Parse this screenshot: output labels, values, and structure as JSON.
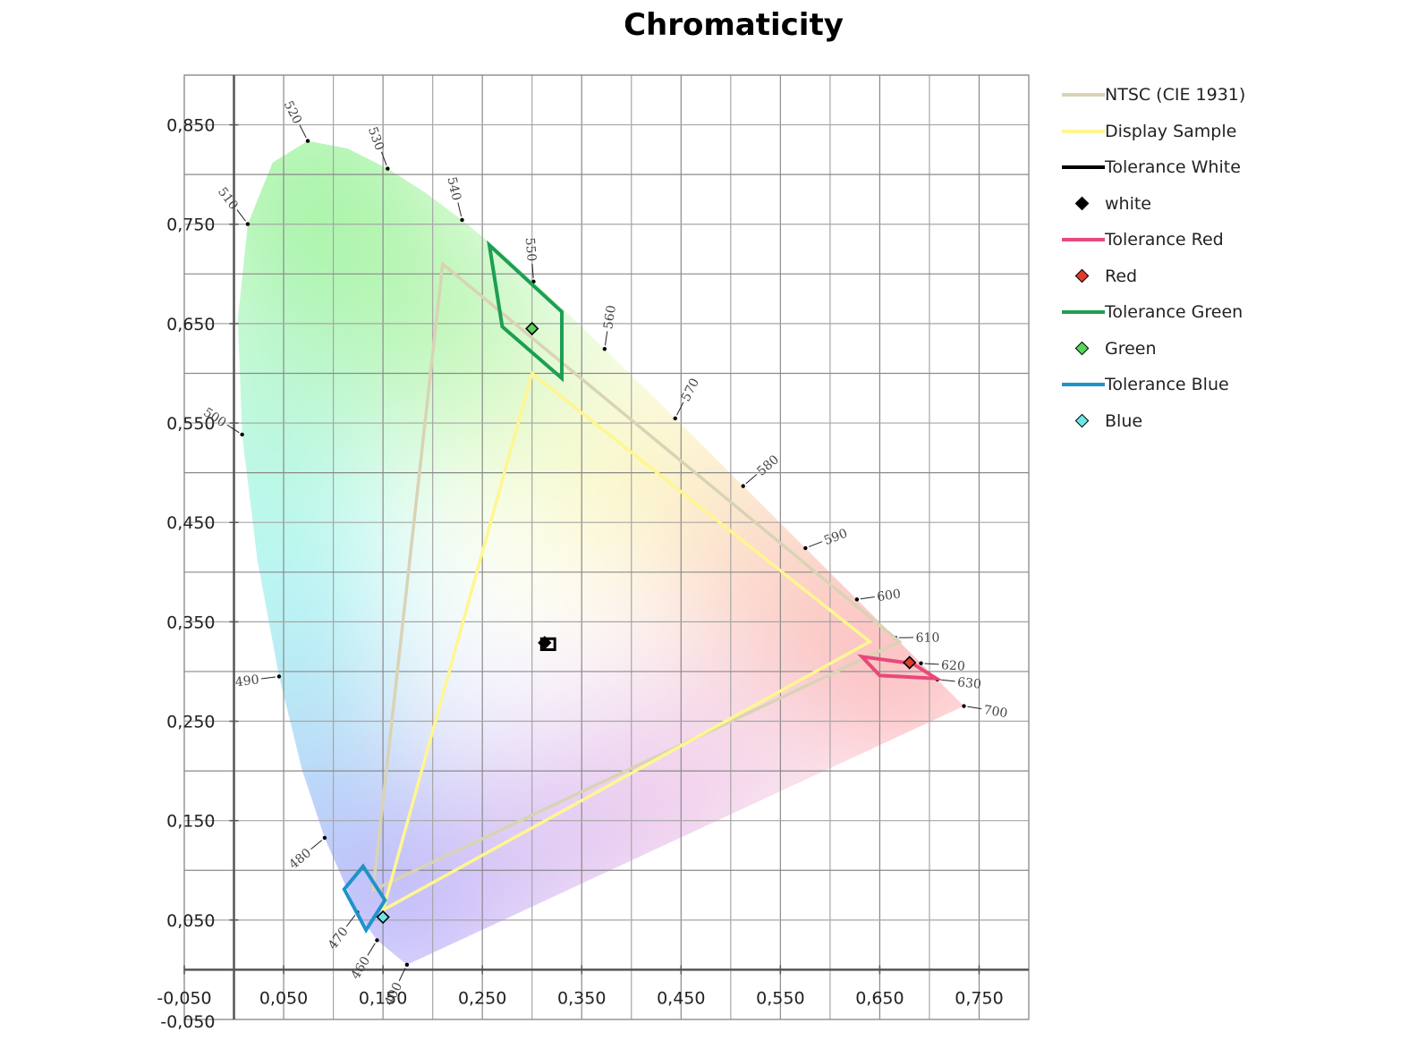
{
  "chart_data": {
    "type": "scatter",
    "title": "Chromaticity",
    "xlabel": "",
    "ylabel": "",
    "xlim": [
      -0.05,
      0.8
    ],
    "ylim": [
      -0.05,
      0.9
    ],
    "x_ticks": [
      -0.05,
      0.05,
      0.15,
      0.25,
      0.35,
      0.45,
      0.55,
      0.65,
      0.75
    ],
    "x_tick_labels": [
      "-0,050",
      "0,050",
      "0,150",
      "0,250",
      "0,350",
      "0,450",
      "0,550",
      "0,650",
      "0,750"
    ],
    "y_ticks": [
      0.05,
      0.15,
      0.25,
      0.35,
      0.45,
      0.55,
      0.65,
      0.75,
      0.85
    ],
    "y_tick_labels": [
      "0,050",
      "0,150",
      "0,250",
      "0,350",
      "0,450",
      "0,550",
      "0,650",
      "0,750",
      "0,850"
    ],
    "origin_y_label": "-0,050",
    "grid": true,
    "legend_position": "right",
    "spectral_locus": [
      [
        0.1741,
        0.005
      ],
      [
        0.144,
        0.0297
      ],
      [
        0.1241,
        0.0578
      ],
      [
        0.0913,
        0.1327
      ],
      [
        0.0687,
        0.2007
      ],
      [
        0.0454,
        0.295
      ],
      [
        0.0235,
        0.4127
      ],
      [
        0.0082,
        0.5384
      ],
      [
        0.0039,
        0.6548
      ],
      [
        0.0139,
        0.7502
      ],
      [
        0.0389,
        0.812
      ],
      [
        0.0743,
        0.8338
      ],
      [
        0.1142,
        0.8262
      ],
      [
        0.1547,
        0.8059
      ],
      [
        0.1929,
        0.7816
      ],
      [
        0.2296,
        0.7543
      ],
      [
        0.2658,
        0.7243
      ],
      [
        0.3016,
        0.6923
      ],
      [
        0.3373,
        0.6589
      ],
      [
        0.3731,
        0.6245
      ],
      [
        0.4087,
        0.5896
      ],
      [
        0.4441,
        0.5547
      ],
      [
        0.4788,
        0.5202
      ],
      [
        0.5125,
        0.4866
      ],
      [
        0.5448,
        0.4544
      ],
      [
        0.5752,
        0.4242
      ],
      [
        0.6029,
        0.3965
      ],
      [
        0.627,
        0.3725
      ],
      [
        0.6482,
        0.3514
      ],
      [
        0.6658,
        0.334
      ],
      [
        0.6915,
        0.3083
      ],
      [
        0.7347,
        0.2653
      ]
    ],
    "wavelength_labels": [
      {
        "nm": "400",
        "x": 0.1741,
        "y": 0.005
      },
      {
        "nm": "460",
        "x": 0.144,
        "y": 0.0297
      },
      {
        "nm": "470",
        "x": 0.1241,
        "y": 0.0578
      },
      {
        "nm": "480",
        "x": 0.0913,
        "y": 0.1327
      },
      {
        "nm": "490",
        "x": 0.0454,
        "y": 0.295
      },
      {
        "nm": "500",
        "x": 0.0082,
        "y": 0.5384
      },
      {
        "nm": "510",
        "x": 0.0139,
        "y": 0.7502
      },
      {
        "nm": "520",
        "x": 0.0743,
        "y": 0.8338
      },
      {
        "nm": "530",
        "x": 0.1547,
        "y": 0.8059
      },
      {
        "nm": "540",
        "x": 0.2296,
        "y": 0.7543
      },
      {
        "nm": "550",
        "x": 0.3016,
        "y": 0.6923
      },
      {
        "nm": "560",
        "x": 0.3731,
        "y": 0.6245
      },
      {
        "nm": "570",
        "x": 0.4441,
        "y": 0.5547
      },
      {
        "nm": "580",
        "x": 0.5125,
        "y": 0.4866
      },
      {
        "nm": "590",
        "x": 0.5752,
        "y": 0.4242
      },
      {
        "nm": "600",
        "x": 0.627,
        "y": 0.3725
      },
      {
        "nm": "610",
        "x": 0.6658,
        "y": 0.334
      },
      {
        "nm": "620",
        "x": 0.6915,
        "y": 0.3083
      },
      {
        "nm": "630",
        "x": 0.7079,
        "y": 0.292
      },
      {
        "nm": "700",
        "x": 0.7347,
        "y": 0.2653
      }
    ],
    "series": [
      {
        "name": "NTSC (CIE 1931)",
        "kind": "polygon",
        "color": "#d9d3b6",
        "points": [
          [
            0.67,
            0.33
          ],
          [
            0.21,
            0.71
          ],
          [
            0.14,
            0.08
          ]
        ]
      },
      {
        "name": "Display Sample",
        "kind": "polygon",
        "color": "#fff691",
        "points": [
          [
            0.64,
            0.33
          ],
          [
            0.3,
            0.6
          ],
          [
            0.15,
            0.06
          ]
        ]
      },
      {
        "name": "Tolerance White",
        "kind": "polygon",
        "color": "#000000",
        "points": [
          [
            0.3095,
            0.333
          ],
          [
            0.323,
            0.333
          ],
          [
            0.323,
            0.322
          ],
          [
            0.3095,
            0.322
          ]
        ]
      },
      {
        "name": "white",
        "kind": "marker",
        "color": "#000000",
        "points": [
          [
            0.3127,
            0.329
          ]
        ]
      },
      {
        "name": "Tolerance Red",
        "kind": "polygon",
        "color": "#e8497a",
        "points": [
          [
            0.632,
            0.315
          ],
          [
            0.683,
            0.308
          ],
          [
            0.707,
            0.293
          ],
          [
            0.65,
            0.296
          ]
        ]
      },
      {
        "name": "Red",
        "kind": "marker",
        "color": "#e23b2e",
        "points": [
          [
            0.68,
            0.309
          ]
        ]
      },
      {
        "name": "Tolerance Green",
        "kind": "polygon",
        "color": "#1e9e55",
        "points": [
          [
            0.257,
            0.729
          ],
          [
            0.33,
            0.662
          ],
          [
            0.33,
            0.595
          ],
          [
            0.27,
            0.647
          ]
        ]
      },
      {
        "name": "Green",
        "kind": "marker",
        "color": "#57d45a",
        "points": [
          [
            0.3,
            0.645
          ]
        ]
      },
      {
        "name": "Tolerance Blue",
        "kind": "polygon",
        "color": "#1f93c9",
        "points": [
          [
            0.13,
            0.104
          ],
          [
            0.152,
            0.07
          ],
          [
            0.133,
            0.04
          ],
          [
            0.111,
            0.081
          ]
        ]
      },
      {
        "name": "Blue",
        "kind": "marker",
        "color": "#6ee6e6",
        "points": [
          [
            0.15,
            0.053
          ]
        ]
      }
    ]
  }
}
